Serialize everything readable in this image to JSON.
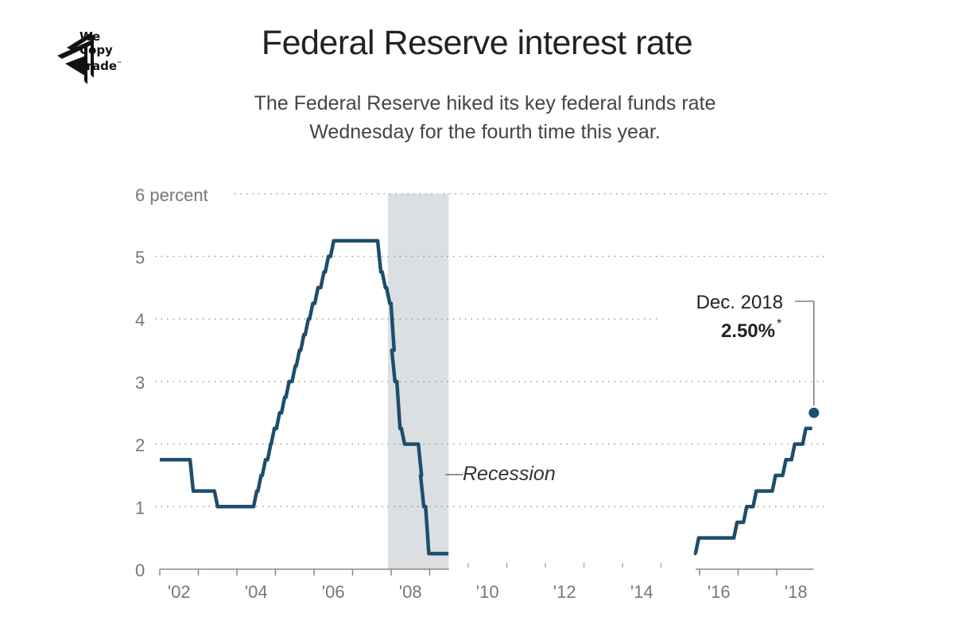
{
  "logo": {
    "line1": "We",
    "line2": "Copy",
    "line3": "Trade",
    "tm": "™"
  },
  "header": {
    "title": "Federal Reserve interest rate",
    "subtitle_line1": "The Federal Reserve hiked its key federal funds rate",
    "subtitle_line2": "Wednesday for the fourth time this year."
  },
  "chart_data": {
    "type": "line",
    "title": "Federal Reserve interest rate",
    "ylabel": "",
    "ylim": [
      0,
      6
    ],
    "yticks": [
      {
        "value": 0,
        "label": "0"
      },
      {
        "value": 1,
        "label": "1"
      },
      {
        "value": 2,
        "label": "2"
      },
      {
        "value": 3,
        "label": "3"
      },
      {
        "value": 4,
        "label": "4"
      },
      {
        "value": 5,
        "label": "5"
      },
      {
        "value": 6,
        "label": "6 percent"
      }
    ],
    "xlim": [
      "2002-01-01",
      "2019-01-01"
    ],
    "xticks": [
      "'02",
      "'04",
      "'06",
      "'08",
      "'10",
      "'12",
      "'14",
      "'16",
      "'18"
    ],
    "grid": "horizontal dotted",
    "line_color": "#1d4e6b",
    "recession": {
      "label": "Recession",
      "start": "2007-12-01",
      "end": "2009-06-30",
      "color": "#dcdfe2"
    },
    "series": [
      {
        "values": [
          [
            "2002-01-01",
            1.75
          ],
          [
            "2002-11-06",
            1.25
          ],
          [
            "2003-06-25",
            1.0
          ],
          [
            "2004-06-30",
            1.25
          ],
          [
            "2004-08-10",
            1.5
          ],
          [
            "2004-09-21",
            1.75
          ],
          [
            "2004-11-10",
            2.0
          ],
          [
            "2004-12-14",
            2.25
          ],
          [
            "2005-02-02",
            2.5
          ],
          [
            "2005-03-22",
            2.75
          ],
          [
            "2005-05-03",
            3.0
          ],
          [
            "2005-06-30",
            3.25
          ],
          [
            "2005-08-09",
            3.5
          ],
          [
            "2005-09-20",
            3.75
          ],
          [
            "2005-11-01",
            4.0
          ],
          [
            "2005-12-13",
            4.25
          ],
          [
            "2006-01-31",
            4.5
          ],
          [
            "2006-03-28",
            4.75
          ],
          [
            "2006-05-10",
            5.0
          ],
          [
            "2006-06-29",
            5.25
          ],
          [
            "2007-09-18",
            4.75
          ],
          [
            "2007-10-31",
            4.5
          ],
          [
            "2007-12-11",
            4.25
          ],
          [
            "2008-01-22",
            3.5
          ],
          [
            "2008-01-30",
            3.0
          ],
          [
            "2008-03-18",
            2.25
          ],
          [
            "2008-04-30",
            2.0
          ],
          [
            "2008-10-08",
            1.5
          ],
          [
            "2008-10-29",
            1.0
          ],
          [
            "2008-12-16",
            0.25
          ],
          [
            "2009-06-20",
            0.25
          ]
        ]
      },
      {
        "values": [
          [
            "2015-12-01",
            0.25
          ],
          [
            "2015-12-16",
            0.5
          ],
          [
            "2016-12-14",
            0.75
          ],
          [
            "2017-03-15",
            1.0
          ],
          [
            "2017-06-14",
            1.25
          ],
          [
            "2017-12-13",
            1.5
          ],
          [
            "2018-03-21",
            1.75
          ],
          [
            "2018-06-13",
            2.0
          ],
          [
            "2018-09-26",
            2.25
          ],
          [
            "2018-11-25",
            2.25
          ]
        ]
      }
    ],
    "highlight_point": {
      "date": "2018-12-19",
      "value": 2.5,
      "label_date": "Dec. 2018",
      "label_value": "2.50%",
      "label_footnote": "*"
    }
  }
}
